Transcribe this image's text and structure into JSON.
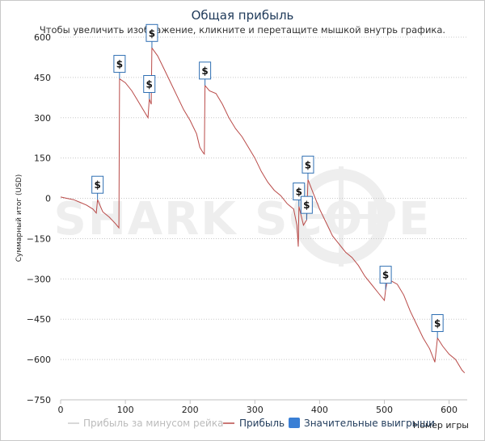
{
  "chart_data": {
    "type": "line",
    "title": "Общая прибыль",
    "subtitle": "Чтобы увеличить изображение, кликните и перетащите мышкой внутрь графика.",
    "xlabel": "Номер игры",
    "ylabel": "Суммарный итог (USD)",
    "xlim": [
      0,
      628
    ],
    "ylim": [
      -750,
      600
    ],
    "xticks": [
      0,
      100,
      200,
      300,
      400,
      500,
      600
    ],
    "yticks": [
      600,
      450,
      300,
      150,
      0,
      -150,
      -300,
      -450,
      -600,
      -750
    ],
    "grid": "horizontal dotted",
    "legend_position": "bottom",
    "watermark": "SHARK SCOPE",
    "legend": [
      {
        "label": "Прибыль за минусом рейка",
        "color": "#cccccc",
        "kind": "line"
      },
      {
        "label": "Прибыль",
        "color": "#b94a48",
        "kind": "line"
      },
      {
        "label": "Значительные выигрыши",
        "color": "#3a7fd5",
        "kind": "box"
      }
    ],
    "series": [
      {
        "name": "Прибыль",
        "color": "#b94a48",
        "points": [
          [
            0,
            5
          ],
          [
            10,
            0
          ],
          [
            20,
            -5
          ],
          [
            30,
            -15
          ],
          [
            40,
            -25
          ],
          [
            50,
            -40
          ],
          [
            55,
            -55
          ],
          [
            57,
            -5
          ],
          [
            65,
            -50
          ],
          [
            75,
            -70
          ],
          [
            85,
            -95
          ],
          [
            90,
            -110
          ],
          [
            91,
            445
          ],
          [
            100,
            430
          ],
          [
            110,
            400
          ],
          [
            120,
            360
          ],
          [
            130,
            320
          ],
          [
            135,
            300
          ],
          [
            137,
            370
          ],
          [
            140,
            350
          ],
          [
            141,
            560
          ],
          [
            150,
            530
          ],
          [
            160,
            480
          ],
          [
            170,
            430
          ],
          [
            180,
            380
          ],
          [
            190,
            330
          ],
          [
            200,
            290
          ],
          [
            210,
            240
          ],
          [
            215,
            190
          ],
          [
            220,
            170
          ],
          [
            222,
            165
          ],
          [
            223,
            420
          ],
          [
            230,
            400
          ],
          [
            240,
            390
          ],
          [
            250,
            350
          ],
          [
            260,
            300
          ],
          [
            270,
            260
          ],
          [
            280,
            230
          ],
          [
            290,
            190
          ],
          [
            300,
            150
          ],
          [
            310,
            100
          ],
          [
            320,
            60
          ],
          [
            330,
            30
          ],
          [
            340,
            10
          ],
          [
            350,
            -20
          ],
          [
            360,
            -40
          ],
          [
            365,
            -100
          ],
          [
            367,
            -180
          ],
          [
            368,
            -30
          ],
          [
            375,
            -100
          ],
          [
            380,
            -80
          ],
          [
            382,
            70
          ],
          [
            390,
            20
          ],
          [
            400,
            -40
          ],
          [
            410,
            -90
          ],
          [
            420,
            -140
          ],
          [
            430,
            -170
          ],
          [
            440,
            -200
          ],
          [
            450,
            -220
          ],
          [
            460,
            -250
          ],
          [
            470,
            -290
          ],
          [
            480,
            -320
          ],
          [
            490,
            -350
          ],
          [
            500,
            -380
          ],
          [
            502,
            -340
          ],
          [
            505,
            -300
          ],
          [
            520,
            -320
          ],
          [
            530,
            -360
          ],
          [
            540,
            -420
          ],
          [
            550,
            -470
          ],
          [
            560,
            -520
          ],
          [
            570,
            -560
          ],
          [
            578,
            -610
          ],
          [
            582,
            -520
          ],
          [
            590,
            -550
          ],
          [
            600,
            -580
          ],
          [
            610,
            -600
          ],
          [
            620,
            -640
          ],
          [
            624,
            -650
          ]
        ]
      }
    ],
    "significant_wins": [
      {
        "x": 57,
        "y": -5,
        "label": "$"
      },
      {
        "x": 91,
        "y": 445,
        "label": "$"
      },
      {
        "x": 137,
        "y": 370,
        "label": "$"
      },
      {
        "x": 141,
        "y": 560,
        "label": "$"
      },
      {
        "x": 223,
        "y": 420,
        "label": "$"
      },
      {
        "x": 368,
        "y": -30,
        "label": "$"
      },
      {
        "x": 382,
        "y": 70,
        "label": "$"
      },
      {
        "x": 380,
        "y": -80,
        "label": "$"
      },
      {
        "x": 502,
        "y": -340,
        "label": "$"
      },
      {
        "x": 582,
        "y": -520,
        "label": "$"
      }
    ]
  }
}
